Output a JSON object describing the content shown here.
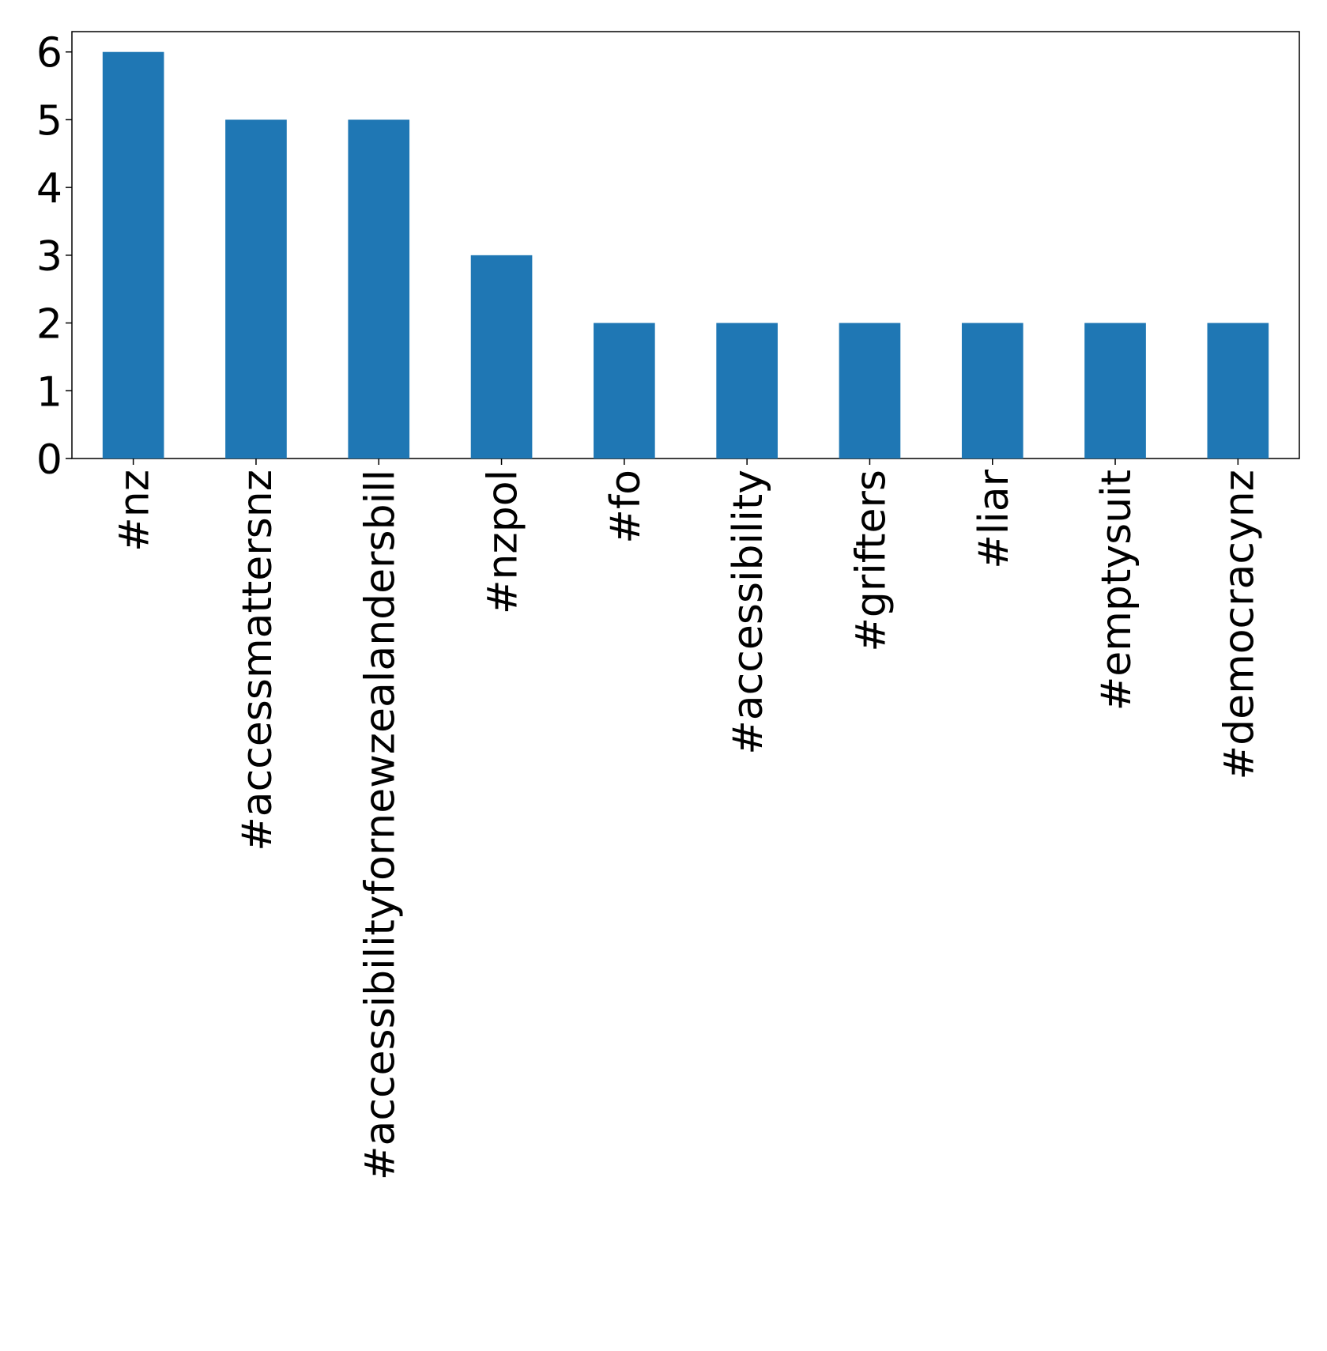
{
  "chart_data": {
    "type": "bar",
    "categories": [
      "#nz",
      "#accessmattersnz",
      "#accessibilityfornewzealandersbill",
      "#nzpol",
      "#fo",
      "#accessibility",
      "#grifters",
      "#liar",
      "#emptysuit",
      "#democracynz"
    ],
    "values": [
      6,
      5,
      5,
      3,
      2,
      2,
      2,
      2,
      2,
      2
    ],
    "color": "#1f77b4",
    "ylim": [
      0,
      6.3
    ],
    "yticks": [
      0,
      1,
      2,
      3,
      4,
      5,
      6
    ],
    "grid": false
  }
}
